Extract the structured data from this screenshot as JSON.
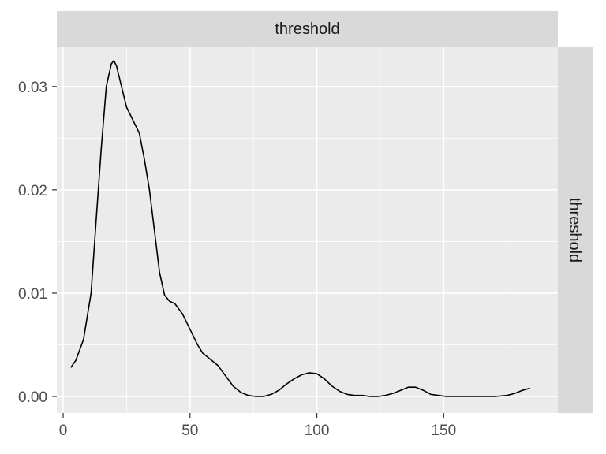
{
  "chart_data": {
    "type": "line",
    "title": "",
    "xlabel": "",
    "ylabel": "",
    "facet_top_label": "threshold",
    "facet_right_label": "threshold",
    "xlim": [
      -2.5,
      195
    ],
    "ylim": [
      -0.0016,
      0.0338
    ],
    "x_ticks": [
      0,
      50,
      100,
      150
    ],
    "x_tick_labels": [
      "0",
      "50",
      "100",
      "150"
    ],
    "y_ticks": [
      0.0,
      0.01,
      0.02,
      0.03
    ],
    "y_tick_labels": [
      "0.00",
      "0.01",
      "0.02",
      "0.03"
    ],
    "grid": true,
    "panel_background": "#ebebeb",
    "strip_background": "#d9d9d9",
    "line_color": "#000000",
    "series": [
      {
        "x": [
          3,
          5,
          8,
          11,
          13,
          15,
          17,
          19,
          20,
          21,
          23,
          25,
          27,
          30,
          32,
          34,
          36,
          38,
          40,
          42,
          44,
          47,
          50,
          53,
          55,
          58,
          61,
          64,
          67,
          70,
          73,
          76,
          79,
          82,
          85,
          88,
          91,
          94,
          97,
          100,
          103,
          106,
          109,
          112,
          115,
          118,
          121,
          124,
          127,
          130,
          133,
          136,
          139,
          142,
          145,
          148,
          151,
          155,
          160,
          165,
          170,
          175,
          178,
          181,
          184
        ],
        "y": [
          0.0028,
          0.0035,
          0.0055,
          0.01,
          0.017,
          0.024,
          0.03,
          0.0322,
          0.0325,
          0.032,
          0.03,
          0.028,
          0.027,
          0.0255,
          0.023,
          0.02,
          0.016,
          0.012,
          0.0098,
          0.0092,
          0.009,
          0.008,
          0.0065,
          0.005,
          0.0042,
          0.0036,
          0.003,
          0.002,
          0.001,
          0.0004,
          0.0001,
          0.0,
          0.0,
          0.0002,
          0.0006,
          0.0012,
          0.0017,
          0.0021,
          0.0023,
          0.0022,
          0.0017,
          0.001,
          0.0005,
          0.0002,
          0.0001,
          0.0001,
          0.0,
          0.0,
          0.0001,
          0.0003,
          0.0006,
          0.0009,
          0.0009,
          0.0006,
          0.0002,
          0.0001,
          0.0,
          0.0,
          0.0,
          0.0,
          0.0,
          0.0001,
          0.0003,
          0.0006,
          0.0008
        ]
      }
    ]
  }
}
